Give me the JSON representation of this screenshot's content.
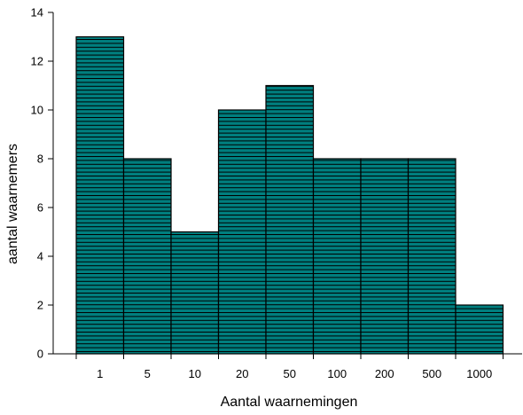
{
  "chart_data": {
    "type": "bar",
    "title": "",
    "xlabel": "Aantal waarnemingen",
    "ylabel": "aantal waarnemers",
    "categories": [
      "1",
      "5",
      "10",
      "20",
      "50",
      "100",
      "200",
      "500",
      "1000"
    ],
    "values": [
      13,
      8,
      5,
      10,
      11,
      8,
      8,
      8,
      2
    ],
    "ylim": [
      0,
      14
    ],
    "yticks": [
      "0",
      "2",
      "4",
      "6",
      "8",
      "10",
      "12",
      "14"
    ],
    "grid": false,
    "legend": "none",
    "bar_style": "horizontal-hatch",
    "colors": {
      "bar_fill": "#007f7f",
      "bar_hatch": "#000000",
      "axis": "#000000"
    }
  }
}
